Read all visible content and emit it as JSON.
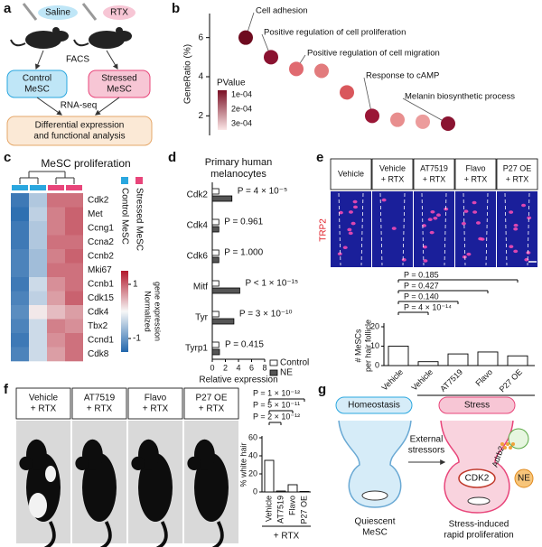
{
  "a": {
    "label": "a",
    "saline": "Saline",
    "rtx": "RTX",
    "facs": "FACS",
    "control": [
      "Control",
      "MeSC"
    ],
    "stressed": [
      "Stressed",
      "MeSC"
    ],
    "rnaseq": "RNA-seq",
    "analysis": [
      "Differential expression",
      "and functional analysis"
    ]
  },
  "b": {
    "label": "b",
    "type": "scatter",
    "ylabel": "GeneRatio (%)",
    "ylim": [
      1,
      7
    ],
    "yticks": [
      2,
      4,
      6
    ],
    "values": [
      6.0,
      5.0,
      4.4,
      4.3,
      3.2,
      2.0,
      1.8,
      1.7,
      1.6
    ],
    "colors": [
      "#6e0b1f",
      "#8a1230",
      "#e06a70",
      "#e27b7d",
      "#d9575c",
      "#9a1636",
      "#e88e8e",
      "#ec9c9c",
      "#8a1431"
    ],
    "annotations": [
      "Cell adhesion",
      "Positive regulation of cell proliferation",
      "Positive regulation of cell migration",
      "Response to cAMP",
      "Melanin biosynthetic process"
    ],
    "legend": {
      "title": "PValue",
      "labels": [
        "1e-04",
        "2e-04",
        "3e-04"
      ]
    }
  },
  "c": {
    "label": "c",
    "type": "heatmap",
    "title": "MeSC proliferation",
    "genes": [
      "Cdk2",
      "Met",
      "Ccng1",
      "Ccna2",
      "Ccnb2",
      "Mki67",
      "Ccnb1",
      "Cdk15",
      "Cdk4",
      "Tbx2",
      "Ccnd1",
      "Cdk8"
    ],
    "values": [
      [
        -1.3,
        -0.5,
        0.9,
        0.9
      ],
      [
        -1.4,
        -0.4,
        0.8,
        1.0
      ],
      [
        -1.3,
        -0.5,
        0.8,
        1.0
      ],
      [
        -1.3,
        -0.5,
        0.9,
        0.9
      ],
      [
        -1.2,
        -0.6,
        0.8,
        1.0
      ],
      [
        -1.2,
        -0.6,
        0.9,
        0.9
      ],
      [
        -1.3,
        -0.3,
        0.7,
        0.9
      ],
      [
        -1.2,
        -0.4,
        0.6,
        1.0
      ],
      [
        -1.1,
        0.1,
        0.4,
        0.6
      ],
      [
        -1.2,
        -0.3,
        0.8,
        0.7
      ],
      [
        -1.3,
        -0.3,
        0.7,
        0.9
      ],
      [
        -1.2,
        -0.3,
        0.6,
        0.9
      ]
    ],
    "groups": [
      {
        "name": "Control MeSC",
        "color": "#2aa7df"
      },
      {
        "name": "Stressed MeSC",
        "color": "#e8457a"
      }
    ],
    "colorbar_ticks": [
      1,
      -1
    ],
    "colorbar_label": [
      "Normalized",
      "gene expression"
    ]
  },
  "d": {
    "label": "d",
    "type": "bar",
    "title": [
      "Primary human",
      "melanocytes"
    ],
    "categories": [
      "Cdk2",
      "Cdk4",
      "Cdk6",
      "Mitf",
      "Tyr",
      "Tyrp1"
    ],
    "series": [
      {
        "name": "Control",
        "color": "#ffffff",
        "values": [
          1,
          1,
          1,
          1,
          1,
          1
        ]
      },
      {
        "name": "NE",
        "color": "#555555",
        "values": [
          3.0,
          1.0,
          1.0,
          4.2,
          3.3,
          1.1
        ]
      }
    ],
    "p_labels": [
      "P = 4 × 10⁻⁵",
      "P = 0.961",
      "P = 1.000",
      "P < 1 × 10⁻¹⁵",
      "P = 3 × 10⁻¹⁰",
      "P = 0.415"
    ],
    "xlabel": "Relative expression",
    "xlim": [
      0,
      8
    ],
    "xticks": [
      0,
      2,
      4,
      6,
      8
    ]
  },
  "e": {
    "label": "e",
    "type": "bar",
    "columns": [
      [
        "Vehicle"
      ],
      [
        "Vehicle",
        "+ RTX"
      ],
      [
        "AT7519",
        "+ RTX"
      ],
      [
        "Flavo",
        "+ RTX"
      ],
      [
        "P27 OE",
        "+ RTX"
      ]
    ],
    "stain": "TRP2",
    "ylabel": [
      "# MeSCs",
      "per hair follicle"
    ],
    "ylim": [
      0,
      20
    ],
    "yticks": [
      0,
      10,
      20
    ],
    "categories": [
      "Vehicle",
      "Vehicle",
      "AT7519",
      "Flavo",
      "P27 OE"
    ],
    "values": [
      10,
      2,
      6,
      7,
      5
    ],
    "group": "+ RTX",
    "p_labels": [
      "P = 0.185",
      "P = 0.427",
      "P = 0.140",
      "P = 4 × 10⁻¹⁴"
    ]
  },
  "f": {
    "label": "f",
    "type": "bar",
    "columns": [
      [
        "Vehicle",
        "+ RTX"
      ],
      [
        "AT7519",
        "+ RTX"
      ],
      [
        "Flavo",
        "+ RTX"
      ],
      [
        "P27 OE",
        "+ RTX"
      ]
    ],
    "ylabel": "% white hair",
    "ylim": [
      0,
      60
    ],
    "yticks": [
      0,
      20,
      40,
      60
    ],
    "categories": [
      "Vehicle",
      "AT7519",
      "Flavo",
      "P27 OE"
    ],
    "values": [
      35,
      1,
      8,
      0.5
    ],
    "group": "+ RTX",
    "p_labels": [
      "P = 1 × 10⁻¹²",
      "P = 5 × 10⁻¹¹",
      "P = 2 × 10⁻¹²"
    ]
  },
  "g": {
    "label": "g",
    "homeostasis": "Homeostasis",
    "stress": "Stress",
    "stressors": [
      "External",
      "stressors"
    ],
    "quiescent": [
      "Quiescent",
      "MeSC"
    ],
    "cdk2": "CDK2",
    "adrb2": "Adrb2",
    "ne": "NE",
    "outcome": [
      "Stress-induced",
      "rapid proliferation"
    ]
  }
}
